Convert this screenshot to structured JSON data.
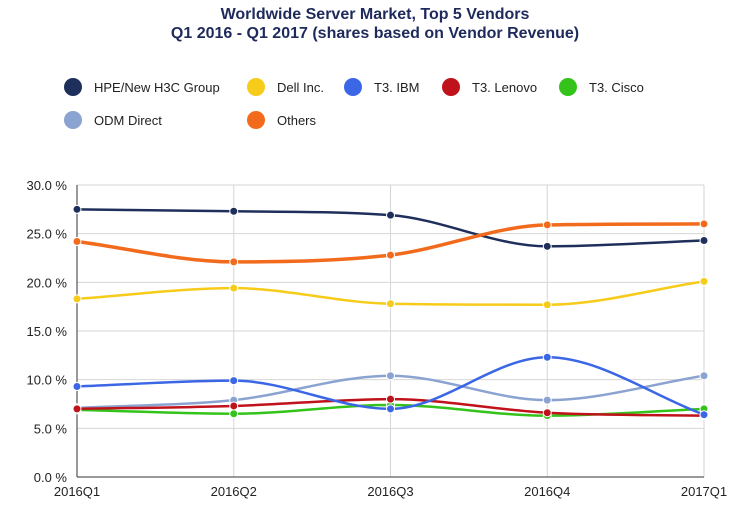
{
  "page": {
    "title_line1": "Worldwide Server Market, Top 5 Vendors",
    "title_line2": "Q1 2016 - Q1 2017 (shares based on Vendor Revenue)"
  },
  "chart_data": {
    "type": "line",
    "title": "Worldwide Server Market, Top 5 Vendors",
    "subtitle": "Q1 2016 - Q1 2017 (shares based on Vendor Revenue)",
    "categories": [
      "2016Q1",
      "2016Q2",
      "2016Q3",
      "2016Q4",
      "2017Q1"
    ],
    "y_ticks": [
      "0.0 %",
      "5.0 %",
      "10.0 %",
      "15.0 %",
      "20.0 %",
      "25.0 %",
      "30.0 %"
    ],
    "ylim": [
      0,
      30
    ],
    "grid": true,
    "legend_position": "top",
    "series": [
      {
        "name": "HPE/New H3C Group",
        "color": "#1f2f5c",
        "values": [
          27.5,
          27.3,
          26.9,
          23.7,
          24.3
        ]
      },
      {
        "name": "Dell Inc.",
        "color": "#f7cb1a",
        "values": [
          18.3,
          19.4,
          17.8,
          17.7,
          20.1
        ]
      },
      {
        "name": "T3. IBM",
        "color": "#3b66e6",
        "values": [
          9.3,
          9.9,
          7.0,
          12.3,
          6.4
        ]
      },
      {
        "name": "T3. Lenovo",
        "color": "#c0121b",
        "values": [
          7.0,
          7.3,
          8.0,
          6.6,
          6.3
        ]
      },
      {
        "name": "T3. Cisco",
        "color": "#34c31a",
        "values": [
          6.9,
          6.5,
          7.4,
          6.3,
          7.0
        ]
      },
      {
        "name": "ODM Direct",
        "color": "#8ba3d1",
        "values": [
          7.1,
          7.9,
          10.4,
          7.9,
          10.4
        ]
      },
      {
        "name": "Others",
        "color": "#f26b1d",
        "values": [
          24.2,
          22.1,
          22.8,
          25.9,
          26.0
        ]
      }
    ]
  }
}
